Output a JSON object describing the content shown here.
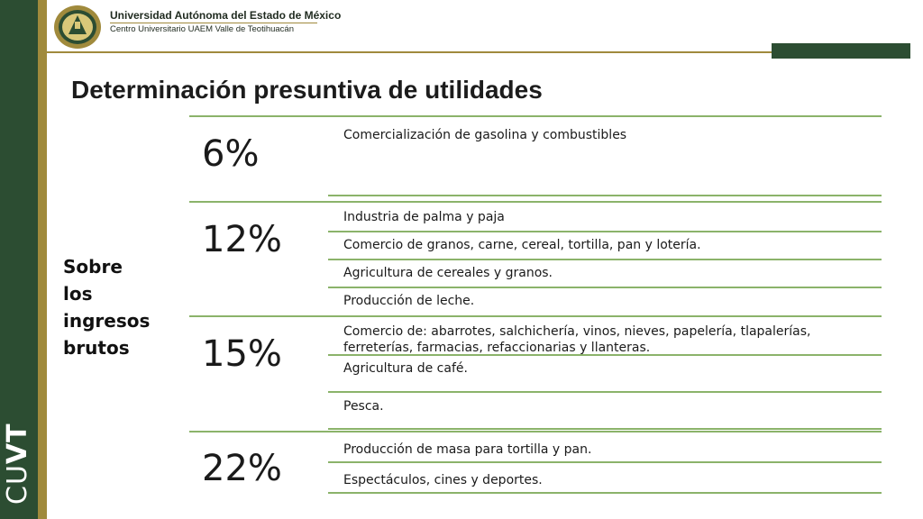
{
  "header": {
    "university": "Universidad Autónoma del Estado de México",
    "center": "Centro Universitario UAEM Valle de Teotihuacán"
  },
  "sidebar": {
    "text_regular": "CU",
    "text_bold": "VT"
  },
  "title": "Determinación presuntiva de utilidades",
  "side_label": [
    "Sobre",
    "los",
    "ingresos",
    "brutos"
  ],
  "groups": [
    {
      "percent": "6%",
      "items": [
        "Comercialización de gasolina y combustibles"
      ]
    },
    {
      "percent": "12%",
      "items": [
        "Industria de palma y paja",
        "Comercio de granos, carne, cereal, tortilla, pan y lotería.",
        "Agricultura de cereales y granos.",
        "Producción de leche."
      ]
    },
    {
      "percent": "15%",
      "items": [
        "Comercio de: abarrotes, salchichería, vinos, nieves, papelería, tlapalerías, ferreterías, farmacias, refaccionarias y llanteras.",
        "Agricultura de café.",
        "Pesca."
      ]
    },
    {
      "percent": "22%",
      "items": [
        "Producción de masa para tortilla y pan.",
        "Espectáculos, cines y deportes."
      ]
    }
  ],
  "colors": {
    "green": "#2c4d32",
    "gold": "#a08a3c",
    "rule": "#8bb36a"
  }
}
